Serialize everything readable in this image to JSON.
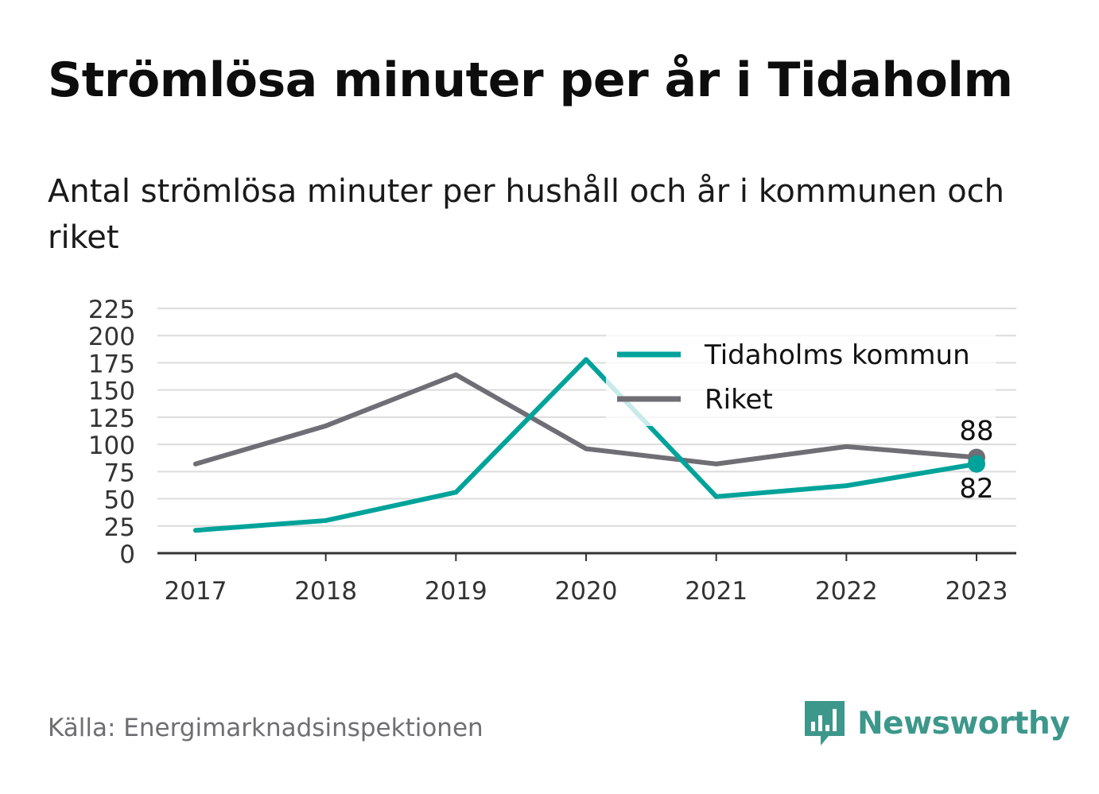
{
  "title": "Strömlösa minuter per år i Tidaholm",
  "subtitle": "Antal strömlösa minuter per hushåll och år i kommunen och riket",
  "source": "Källa: Energimarknadsinspektionen",
  "brand": {
    "name": "Newsworthy",
    "icon": "newsworthy-bar-chart-logo-icon",
    "color": "#3d978b"
  },
  "chart_data": {
    "type": "line",
    "x": [
      "2017",
      "2018",
      "2019",
      "2020",
      "2021",
      "2022",
      "2023"
    ],
    "y_ticks": [
      "0",
      "25",
      "50",
      "75",
      "100",
      "125",
      "150",
      "175",
      "200",
      "225"
    ],
    "ylim": [
      0,
      225
    ],
    "grid": true,
    "legend_position": "top-right",
    "series": [
      {
        "name": "Tidaholms kommun",
        "color": "#00a39a",
        "values": [
          21,
          30,
          56,
          178,
          52,
          62,
          82
        ],
        "end_label": "82"
      },
      {
        "name": "Riket",
        "color": "#6f6e75",
        "values": [
          82,
          117,
          164,
          96,
          82,
          98,
          88
        ],
        "end_label": "88"
      }
    ]
  }
}
